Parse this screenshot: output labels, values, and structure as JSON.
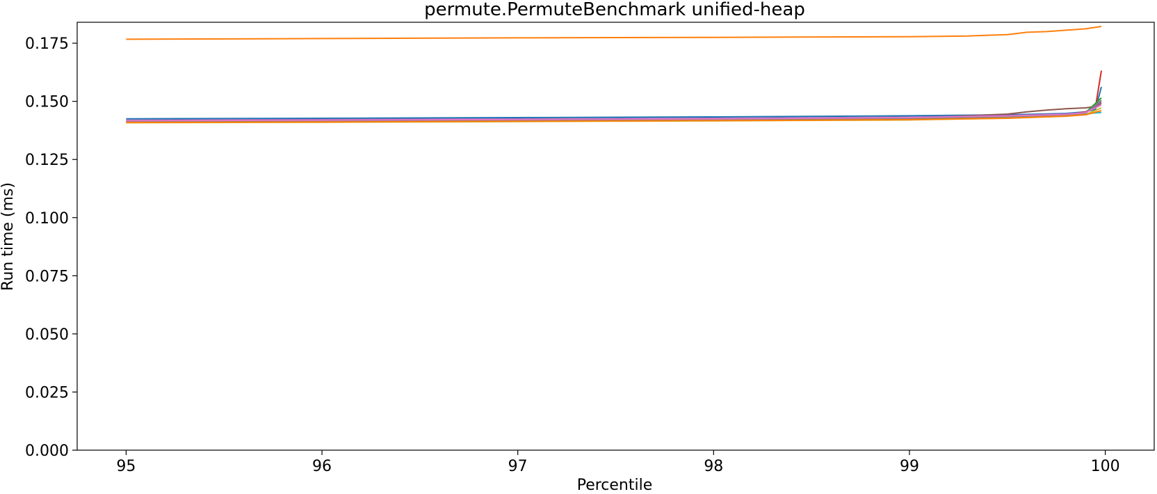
{
  "chart_data": {
    "type": "line",
    "title": "permute.PermuteBenchmark unified-heap",
    "xlabel": "Percentile",
    "ylabel": "Run time (ms)",
    "xlim": [
      94.75,
      100.25
    ],
    "ylim": [
      0.0,
      0.184
    ],
    "xticks": [
      95,
      96,
      97,
      98,
      99,
      100
    ],
    "xtick_labels": [
      "95",
      "96",
      "97",
      "98",
      "99",
      "100"
    ],
    "yticks": [
      0.0,
      0.025,
      0.05,
      0.075,
      0.1,
      0.125,
      0.15,
      0.175
    ],
    "ytick_labels": [
      "0.000",
      "0.025",
      "0.050",
      "0.075",
      "0.100",
      "0.125",
      "0.150",
      "0.175"
    ],
    "grid": false,
    "series": [
      {
        "color": "#ff7f0e",
        "x": [
          95,
          96,
          97,
          98,
          99,
          99.3,
          99.5,
          99.6,
          99.7,
          99.8,
          99.9,
          99.98
        ],
        "y": [
          0.1767,
          0.177,
          0.1773,
          0.1775,
          0.1778,
          0.1781,
          0.1787,
          0.1797,
          0.18,
          0.1806,
          0.1812,
          0.1822
        ]
      },
      {
        "color": "#1f77b4",
        "x": [
          95,
          96,
          97,
          98,
          99,
          99.5,
          99.8,
          99.9,
          99.95,
          99.98
        ],
        "y": [
          0.1425,
          0.1427,
          0.143,
          0.1433,
          0.1438,
          0.1442,
          0.1448,
          0.1455,
          0.1465,
          0.1562
        ]
      },
      {
        "color": "#d62728",
        "x": [
          95,
          96,
          97,
          98,
          99,
          99.5,
          99.8,
          99.9,
          99.95,
          99.98
        ],
        "y": [
          0.1413,
          0.1415,
          0.1418,
          0.1421,
          0.1425,
          0.1432,
          0.1442,
          0.1455,
          0.1475,
          0.1632
        ]
      },
      {
        "color": "#8c564b",
        "x": [
          95,
          96,
          97,
          98,
          99,
          99.5,
          99.6,
          99.7,
          99.8,
          99.9,
          99.95,
          99.98
        ],
        "y": [
          0.1418,
          0.142,
          0.1422,
          0.1425,
          0.1428,
          0.1445,
          0.1455,
          0.1462,
          0.1468,
          0.1472,
          0.1478,
          0.1492
        ]
      },
      {
        "color": "#2ca02c",
        "x": [
          95,
          96,
          97,
          98,
          99,
          99.5,
          99.8,
          99.9,
          99.98
        ],
        "y": [
          0.141,
          0.1412,
          0.1415,
          0.1418,
          0.1422,
          0.1432,
          0.1442,
          0.1452,
          0.1515
        ]
      },
      {
        "color": "#17becf",
        "x": [
          95,
          96,
          97,
          98,
          99,
          99.5,
          99.8,
          99.9,
          99.98
        ],
        "y": [
          0.1416,
          0.1418,
          0.1421,
          0.1424,
          0.1429,
          0.1436,
          0.1442,
          0.1447,
          0.1452
        ]
      },
      {
        "color": "#9467bd",
        "x": [
          95,
          96,
          97,
          98,
          99,
          99.5,
          99.8,
          99.9,
          99.98
        ],
        "y": [
          0.1419,
          0.1422,
          0.1424,
          0.1427,
          0.1432,
          0.1439,
          0.1446,
          0.1452,
          0.1498
        ]
      },
      {
        "color": "#7f7f7f",
        "x": [
          95,
          96,
          97,
          98,
          99,
          99.5,
          99.8,
          99.9,
          99.98
        ],
        "y": [
          0.1414,
          0.1416,
          0.1419,
          0.1422,
          0.1427,
          0.1434,
          0.1441,
          0.1449,
          0.1505
        ]
      },
      {
        "color": "#bcbd22",
        "x": [
          95,
          96,
          97,
          98,
          99,
          99.5,
          99.8,
          99.9,
          99.98
        ],
        "y": [
          0.1408,
          0.141,
          0.1413,
          0.1416,
          0.142,
          0.1428,
          0.1436,
          0.1443,
          0.1472
        ]
      },
      {
        "color": "#e377c2",
        "x": [
          95,
          96,
          97,
          98,
          99,
          99.5,
          99.8,
          99.9,
          99.98
        ],
        "y": [
          0.1417,
          0.1419,
          0.1422,
          0.1425,
          0.143,
          0.1437,
          0.1444,
          0.1451,
          0.1485
        ]
      },
      {
        "color": "#ff7f0e",
        "x": [
          95,
          96,
          97,
          98,
          99,
          99.5,
          99.8,
          99.9,
          99.98
        ],
        "y": [
          0.1409,
          0.1411,
          0.1414,
          0.1417,
          0.1421,
          0.1427,
          0.1436,
          0.1442,
          0.146
        ]
      }
    ]
  }
}
